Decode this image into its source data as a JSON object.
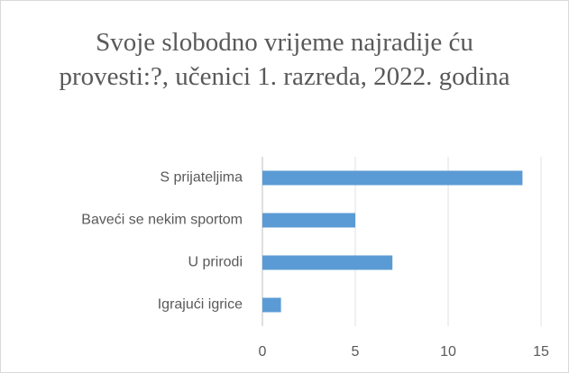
{
  "chart_data": {
    "type": "bar",
    "orientation": "horizontal",
    "title": "Svoje slobodno vrijeme najradije ću provesti:?, učenici 1. razreda, 2022. godina",
    "categories": [
      "S prijateljima",
      "Baveći se nekim sportom",
      "U prirodi",
      "Igrajući igrice"
    ],
    "values": [
      14,
      5,
      7,
      1
    ],
    "color": "#5b9bd5",
    "xlim": [
      0,
      15
    ],
    "xticks": [
      0,
      5,
      10,
      15
    ],
    "grid": true
  }
}
